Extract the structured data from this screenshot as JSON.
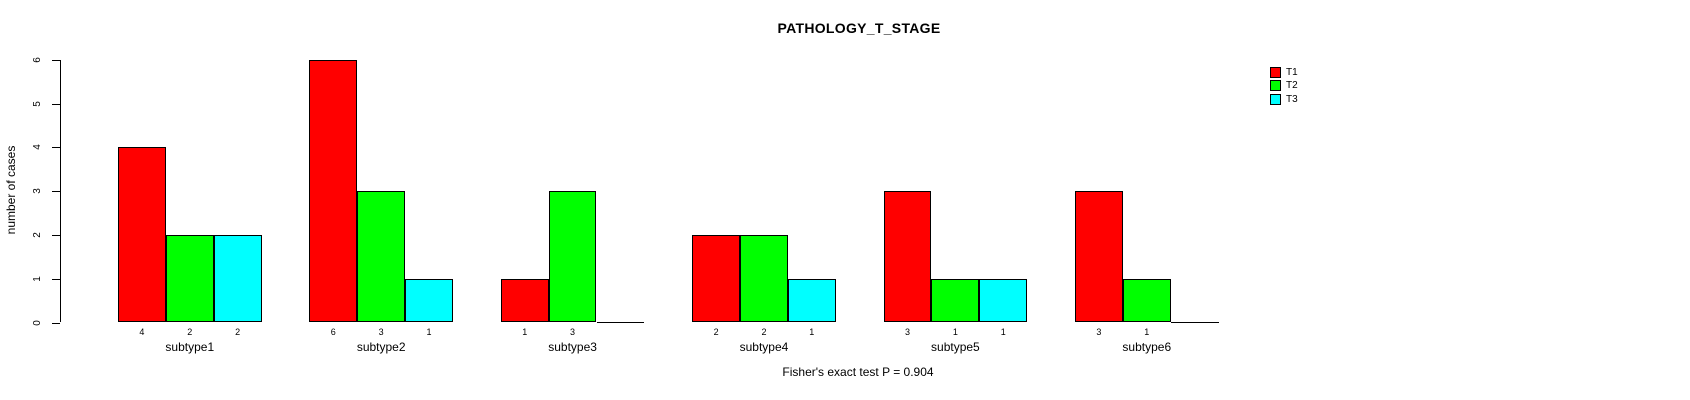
{
  "chart_data": {
    "type": "bar",
    "title": "PATHOLOGY_T_STAGE",
    "ylabel": "number of cases",
    "xlabel": "",
    "footnote": "Fisher's exact test P = 0.904",
    "categories": [
      "subtype1",
      "subtype2",
      "subtype3",
      "subtype4",
      "subtype5",
      "subtype6"
    ],
    "series": [
      {
        "name": "T1",
        "color": "#ff0000",
        "values": [
          4,
          6,
          1,
          2,
          3,
          3
        ]
      },
      {
        "name": "T2",
        "color": "#00ff00",
        "values": [
          2,
          3,
          3,
          2,
          1,
          1
        ]
      },
      {
        "name": "T3",
        "color": "#00ffff",
        "values": [
          2,
          1,
          0,
          1,
          1,
          0
        ]
      }
    ],
    "ylim": [
      0,
      6
    ],
    "yticks": [
      0,
      1,
      2,
      3,
      4,
      5,
      6
    ],
    "legend_position": "top-right",
    "grid": false,
    "value_labels_shown": true,
    "zero_bars_drawn_as_baseline": true,
    "bar_border_color": "#000000",
    "text_color": "#000000",
    "background_color": "#ffffff"
  }
}
